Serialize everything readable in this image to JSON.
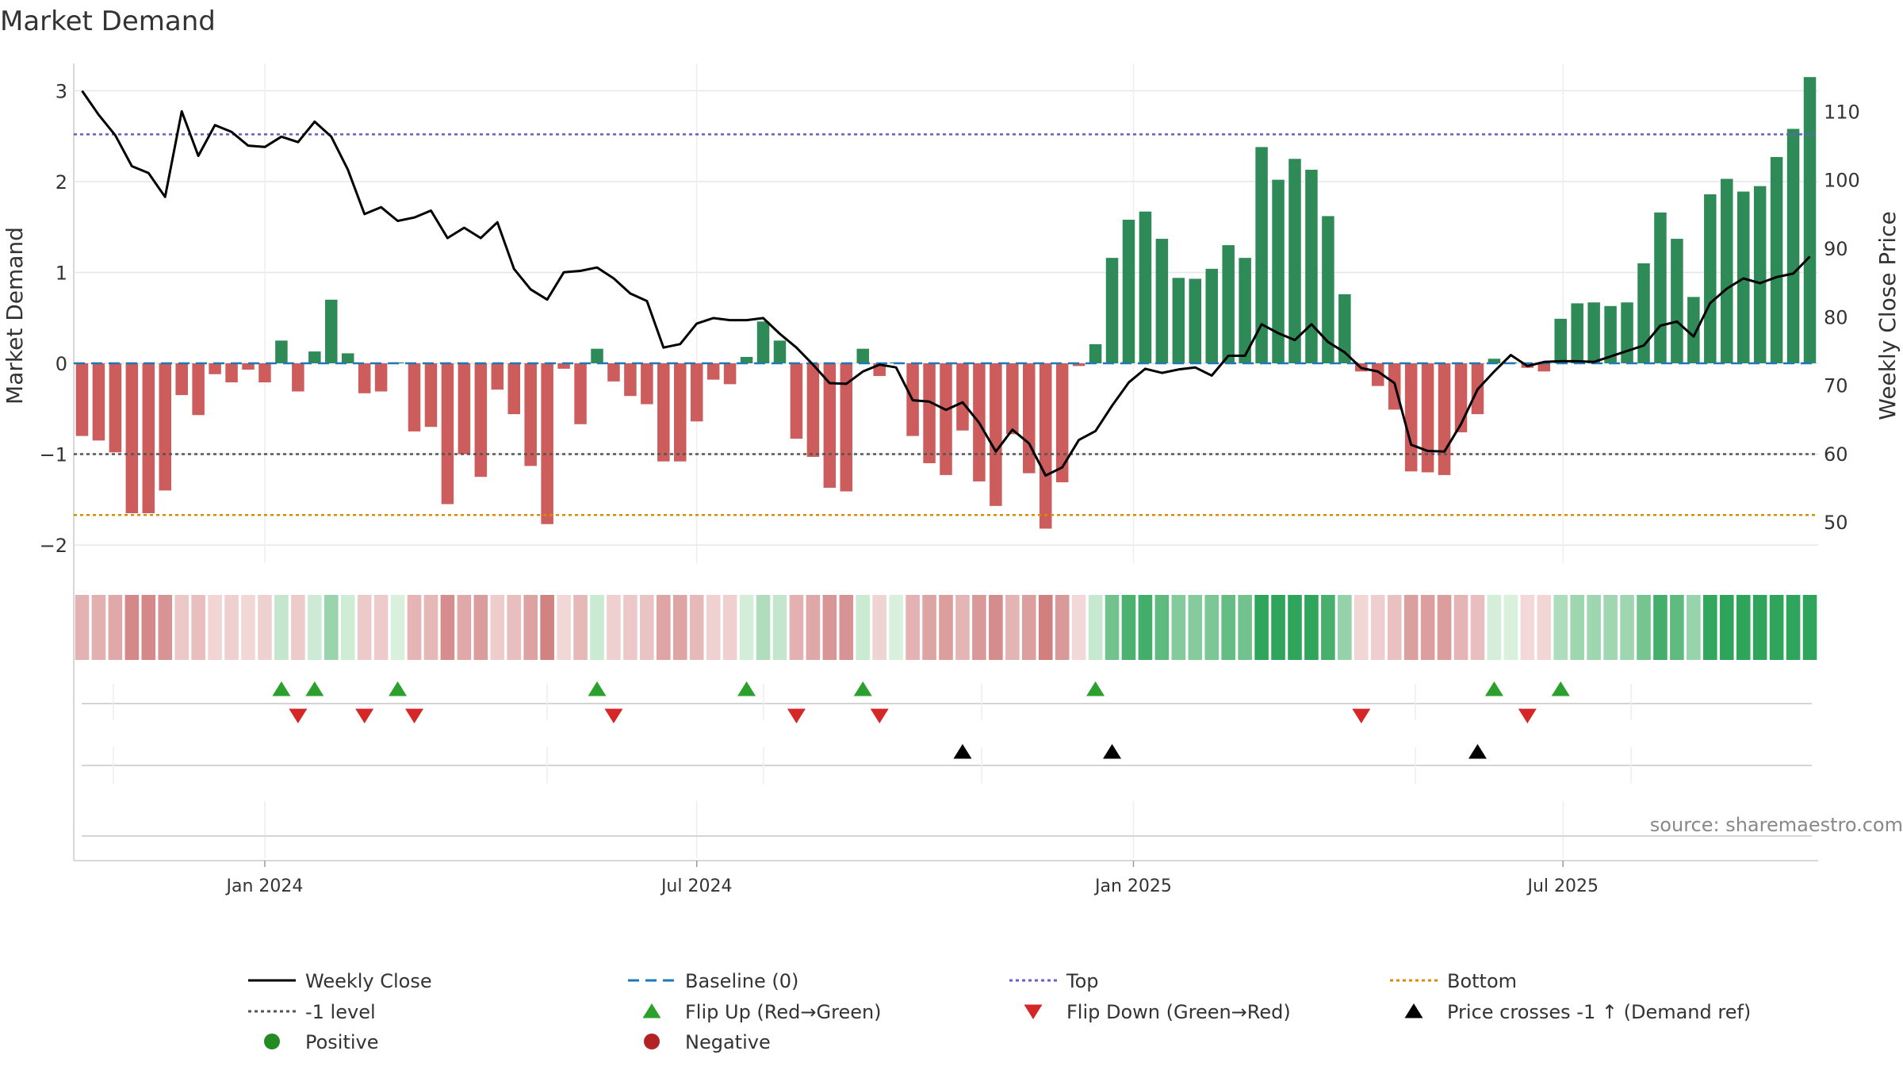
{
  "chart_data": {
    "type": "bar",
    "title": "Market Demand",
    "ylabel_left": "Market Demand",
    "ylabel_right": "Weekly Close Price",
    "ylim": [
      -2.2,
      3.3
    ],
    "ylim_right": [
      44,
      117
    ],
    "yticks": [
      -2,
      -1,
      0,
      1,
      2,
      3
    ],
    "yticks_right": [
      50,
      60,
      70,
      80,
      90,
      100,
      110
    ],
    "x_start": "2023-10-16",
    "x_step_days": 7,
    "x_end": "2025-09-08",
    "x_ticks": [
      {
        "label": "Jan 2024",
        "date": "2024-01-01"
      },
      {
        "label": "Jul 2024",
        "date": "2024-07-01"
      },
      {
        "label": "Jan 2025",
        "date": "2025-01-01"
      },
      {
        "label": "Jul 2025",
        "date": "2025-07-01"
      }
    ],
    "demand": [
      -0.8,
      -0.85,
      -0.98,
      -1.65,
      -1.65,
      -1.4,
      -0.35,
      -0.57,
      -0.12,
      -0.21,
      -0.07,
      -0.21,
      0.25,
      -0.31,
      0.13,
      0.7,
      0.11,
      -0.33,
      -0.31,
      0.01,
      -0.75,
      -0.7,
      -1.55,
      -1.0,
      -1.25,
      -0.29,
      -0.56,
      -1.13,
      -1.77,
      -0.06,
      -0.67,
      0.16,
      -0.2,
      -0.36,
      -0.45,
      -1.08,
      -1.08,
      -0.64,
      -0.18,
      -0.23,
      0.07,
      0.46,
      0.25,
      -0.83,
      -1.03,
      -1.37,
      -1.41,
      0.16,
      -0.14,
      0.01,
      -0.8,
      -1.1,
      -1.23,
      -0.74,
      -1.3,
      -1.57,
      -0.78,
      -1.21,
      -1.82,
      -1.31,
      -0.03,
      0.21,
      1.16,
      1.58,
      1.67,
      1.37,
      0.94,
      0.93,
      1.04,
      1.3,
      1.16,
      2.38,
      2.02,
      2.25,
      2.13,
      1.62,
      0.76,
      -0.09,
      -0.25,
      -0.51,
      -1.19,
      -1.2,
      -1.23,
      -0.76,
      -0.56,
      0.05,
      0.01,
      -0.05,
      -0.09,
      0.49,
      0.66,
      0.67,
      0.63,
      0.67,
      1.1,
      1.66,
      1.37,
      0.73,
      1.86,
      2.03,
      1.89,
      1.95,
      2.27,
      2.58,
      3.15
    ],
    "close": [
      113,
      109.5,
      106.5,
      102,
      101,
      97.5,
      110,
      103.5,
      108,
      107,
      105,
      104.8,
      106.3,
      105.5,
      108.5,
      106.3,
      101.5,
      95,
      96,
      94,
      94.5,
      95.5,
      91.5,
      93,
      91.5,
      93.8,
      87,
      84,
      82.5,
      86.5,
      86.7,
      87.2,
      85.6,
      83.4,
      82.3,
      75.5,
      76,
      79,
      79.8,
      79.5,
      79.5,
      79.8,
      77.5,
      75.5,
      73,
      70.3,
      70.2,
      72,
      73,
      72.6,
      67.8,
      67.6,
      66.4,
      67.5,
      64.5,
      60.3,
      63.5,
      61.5,
      56.8,
      58,
      62,
      63.3,
      67,
      70.4,
      72.4,
      71.8,
      72.3,
      72.6,
      71.4,
      74.3,
      74.3,
      78.9,
      77.6,
      76.6,
      78.9,
      76.3,
      74.8,
      72.5,
      72,
      70.3,
      61.3,
      60.4,
      60.3,
      64.3,
      69.4,
      72,
      74.4,
      72.8,
      73.4,
      73.5,
      73.5,
      73.4,
      74.2,
      75,
      75.8,
      78.7,
      79.3,
      77.1,
      82,
      84.1,
      85.6,
      84.9,
      85.8,
      86.3,
      88.8
    ],
    "top_level": 2.52,
    "bottom_level": -1.67,
    "minus1_level": -1.0,
    "flip_up_weeks": [
      12,
      14,
      19,
      31,
      40,
      47,
      61,
      85,
      89
    ],
    "flip_down_weeks": [
      13,
      17,
      20,
      32,
      43,
      48,
      77,
      87
    ],
    "price_cross_weeks": [
      53,
      62,
      84
    ],
    "legend": [
      {
        "label": "Weekly Close",
        "kind": "solid-line",
        "color": "#000000"
      },
      {
        "label": "Baseline (0)",
        "kind": "dashed-line",
        "color": "#1f77b4"
      },
      {
        "label": "Top",
        "kind": "dotted-line",
        "color": "#6a5acd"
      },
      {
        "label": "Bottom",
        "kind": "dotted-line",
        "color": "#e08a00"
      },
      {
        "label": "-1 level",
        "kind": "dotted-line",
        "color": "#555555"
      },
      {
        "label": "Flip Up (Red→Green)",
        "kind": "tri-up",
        "color": "#2ca02c"
      },
      {
        "label": "Flip Down (Green→Red)",
        "kind": "tri-down",
        "color": "#d62728"
      },
      {
        "label": "Price crosses -1 ↑ (Demand ref)",
        "kind": "tri-up",
        "color": "#000000"
      },
      {
        "label": "Positive",
        "kind": "dot",
        "color": "#228b22"
      },
      {
        "label": "Negative",
        "kind": "dot",
        "color": "#b22222"
      }
    ],
    "source": "source: sharemaestro.com"
  },
  "colors": {
    "positive_bar": "#2e8b57",
    "negative_bar": "#cd5c5c",
    "close_line": "#000000",
    "baseline": "#1f77b4",
    "top": "#6a5acd",
    "bottom": "#e08a00",
    "minus1": "#555555",
    "flip_up": "#2ca02c",
    "flip_down": "#d62728",
    "cross": "#000000",
    "grid": "#e6e6e6",
    "axis_text": "#333333"
  }
}
